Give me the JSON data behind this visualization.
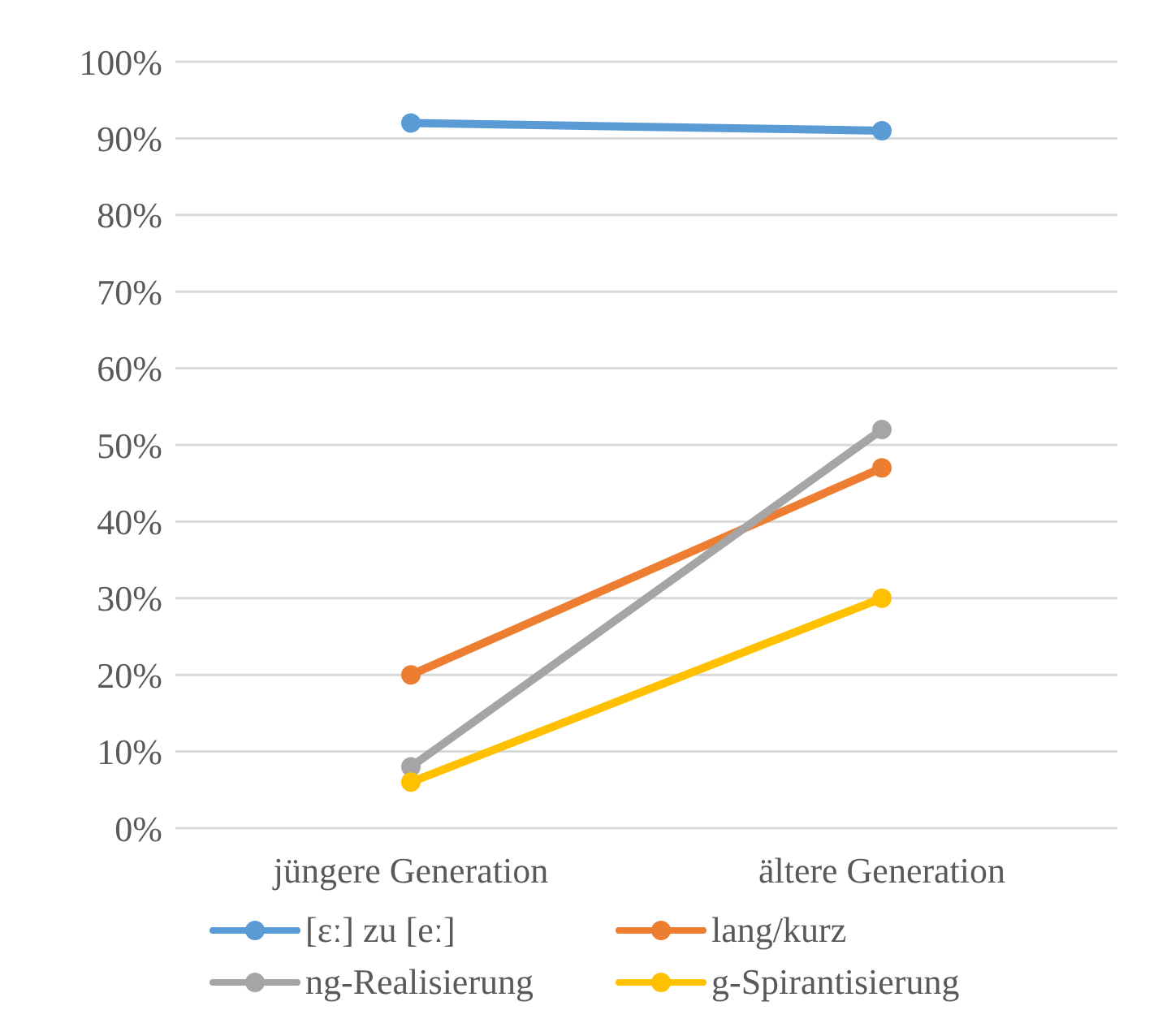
{
  "chart_data": {
    "type": "line",
    "categories": [
      "jüngere Generation",
      "ältere Generation"
    ],
    "series": [
      {
        "name": "[ɛː] zu [eː]",
        "color": "#5b9bd5",
        "values": [
          92,
          91
        ]
      },
      {
        "name": "lang/kurz",
        "color": "#ed7d31",
        "values": [
          20,
          47
        ]
      },
      {
        "name": "ng-Realisierung",
        "color": "#a5a5a5",
        "values": [
          8,
          52
        ]
      },
      {
        "name": "g-Spirantisierung",
        "color": "#ffc000",
        "values": [
          6,
          30
        ]
      }
    ],
    "ylim": [
      0,
      100
    ],
    "yticks": [
      {
        "value": 0,
        "label": "0%"
      },
      {
        "value": 10,
        "label": "10%"
      },
      {
        "value": 20,
        "label": "20%"
      },
      {
        "value": 30,
        "label": "30%"
      },
      {
        "value": 40,
        "label": "40%"
      },
      {
        "value": 50,
        "label": "50%"
      },
      {
        "value": 60,
        "label": "60%"
      },
      {
        "value": 70,
        "label": "70%"
      },
      {
        "value": 80,
        "label": "80%"
      },
      {
        "value": 90,
        "label": "90%"
      },
      {
        "value": 100,
        "label": "100%"
      }
    ],
    "grid": "y",
    "legend": "bottom",
    "marker": "circle",
    "line_style": "solid"
  }
}
